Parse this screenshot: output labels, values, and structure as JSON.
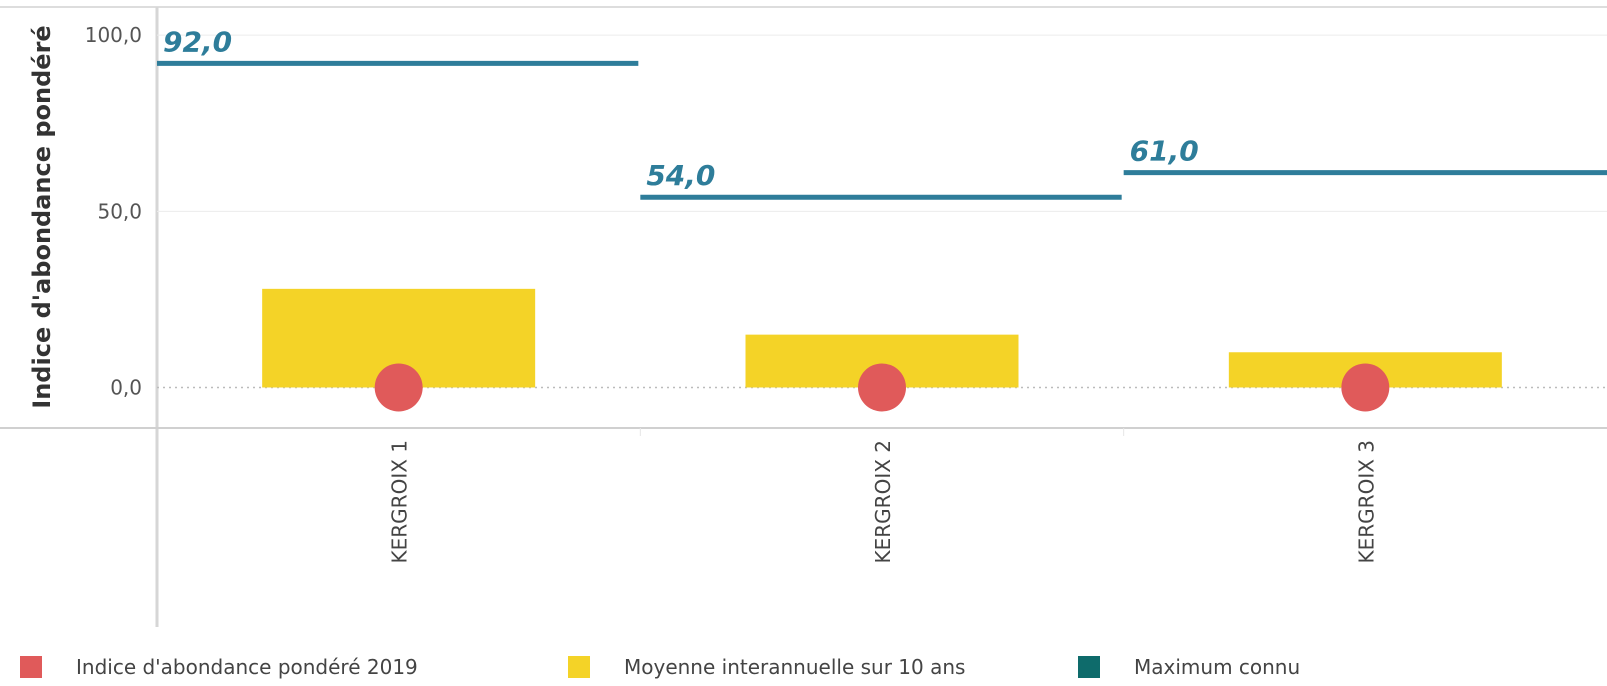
{
  "chart_data": {
    "type": "bar",
    "categories": [
      "KERGROIX 1",
      "KERGROIX 2",
      "KERGROIX 3"
    ],
    "series": [
      {
        "name": "Indice d'abondance pondéré 2019",
        "kind": "point",
        "color": "#e05a5a",
        "values": [
          0,
          0,
          0
        ]
      },
      {
        "name": "Moyenne interannuelle sur 10 ans",
        "kind": "bar",
        "color": "#f4d327",
        "values": [
          28,
          15,
          10
        ]
      },
      {
        "name": "Maximum connu",
        "kind": "line",
        "color": "#2e7d9a",
        "values": [
          92,
          54,
          61
        ],
        "data_labels": [
          "92,0",
          "54,0",
          "61,0"
        ]
      }
    ],
    "ylabel": "Indice d'abondance pondéré",
    "yticks": [
      0,
      50,
      100
    ],
    "ytick_labels": [
      "0,0",
      "50,0",
      "100,0"
    ],
    "ylim": [
      -11.5,
      108
    ],
    "grid": true,
    "legend_position": "bottom"
  },
  "legend": {
    "items": [
      {
        "label": "Indice d'abondance pondéré 2019",
        "color": "#e05a5a"
      },
      {
        "label": "Moyenne interannuelle sur 10 ans",
        "color": "#f4d327"
      },
      {
        "label": "Maximum connu",
        "color": "#0e6b6b"
      }
    ]
  }
}
